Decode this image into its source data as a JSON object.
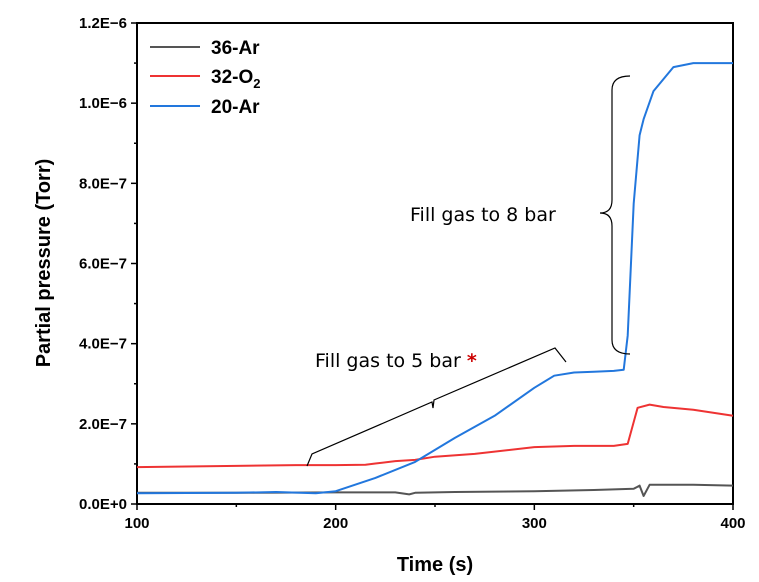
{
  "chart_data": {
    "type": "line",
    "title": "",
    "xlabel": "Time (s)",
    "ylabel": "Partial pressure (Torr)",
    "xlim": [
      100,
      400
    ],
    "ylim": [
      0,
      1.2e-06
    ],
    "x_ticks": [
      100,
      200,
      300,
      400
    ],
    "x_tick_labels": [
      "100",
      "200",
      "300",
      "400"
    ],
    "y_ticks": [
      0,
      2e-07,
      4e-07,
      6e-07,
      8e-07,
      1e-06,
      1.2e-06
    ],
    "y_tick_labels": [
      "0.0E+0",
      "2.0E−7",
      "4.0E−7",
      "6.0E−7",
      "8.0E−7",
      "1.0E−6",
      "1.2E−6"
    ],
    "legend_position": "top-left",
    "series": [
      {
        "name": "36-Ar",
        "label_main": "36-Ar",
        "label_sub": "",
        "color": "#555555",
        "x": [
          100,
          150,
          200,
          230,
          237,
          240,
          260,
          280,
          300,
          330,
          350,
          353,
          355,
          358,
          362,
          380,
          400
        ],
        "y": [
          2.8e-08,
          2.8e-08,
          2.9e-08,
          2.9e-08,
          2.4e-08,
          2.8e-08,
          3e-08,
          3.1e-08,
          3.2e-08,
          3.5e-08,
          3.8e-08,
          4.6e-08,
          2e-08,
          4.8e-08,
          4.8e-08,
          4.8e-08,
          4.6e-08
        ]
      },
      {
        "name": "32-O2",
        "label_main": "32-O",
        "label_sub": "2",
        "color": "#ee3333",
        "x": [
          100,
          150,
          180,
          200,
          215,
          220,
          230,
          240,
          250,
          270,
          300,
          320,
          340,
          347,
          352,
          358,
          365,
          380,
          400
        ],
        "y": [
          9.2e-08,
          9.5e-08,
          9.7e-08,
          9.7e-08,
          9.8e-08,
          1.01e-07,
          1.07e-07,
          1.1e-07,
          1.18e-07,
          1.25e-07,
          1.42e-07,
          1.45e-07,
          1.45e-07,
          1.5e-07,
          2.4e-07,
          2.48e-07,
          2.42e-07,
          2.35e-07,
          2.2e-07
        ]
      },
      {
        "name": "20-Ar",
        "label_main": "20-Ar",
        "label_sub": "",
        "color": "#2277dd",
        "x": [
          100,
          150,
          170,
          190,
          200,
          220,
          240,
          260,
          280,
          300,
          310,
          320,
          330,
          340,
          345,
          347,
          350,
          353,
          355,
          360,
          370,
          380,
          390,
          400
        ],
        "y": [
          2.7e-08,
          2.8e-08,
          3e-08,
          2.7e-08,
          3.2e-08,
          6.5e-08,
          1.05e-07,
          1.65e-07,
          2.2e-07,
          2.9e-07,
          3.2e-07,
          3.28e-07,
          3.3e-07,
          3.32e-07,
          3.35e-07,
          4.2e-07,
          7.5e-07,
          9.2e-07,
          9.6e-07,
          1.03e-06,
          1.09e-06,
          1.1e-06,
          1.1e-06,
          1.1e-06
        ]
      }
    ],
    "annotations": [
      {
        "text": "Fill gas to 8 bar",
        "star": ""
      },
      {
        "text": "Fill gas to 5 bar ",
        "star": "*",
        "star_color": "#cc0000"
      }
    ]
  }
}
